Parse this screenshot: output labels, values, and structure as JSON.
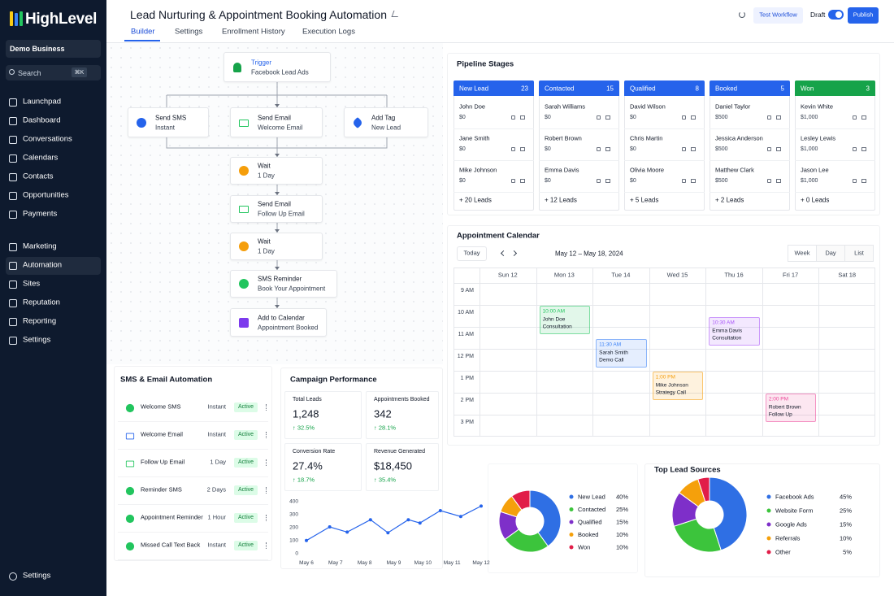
{
  "sidebar": {
    "logo": "HighLevel",
    "business": "Demo Business",
    "search": "Search",
    "shortcut": "⌘K",
    "groups": [
      [
        "Launchpad",
        "Dashboard",
        "Conversations",
        "Calendars",
        "Contacts",
        "Opportunities",
        "Payments"
      ],
      [
        "Marketing",
        "Automation",
        "Sites",
        "Reputation",
        "Reporting",
        "Settings"
      ]
    ],
    "active": {
      "group": 1,
      "index": 1
    },
    "footer": "Settings"
  },
  "header": {
    "title": "Lead Nurturing & Appointment Booking Automation",
    "tabs": [
      "Builder",
      "Settings",
      "Enrollment History",
      "Execution Logs"
    ],
    "active_tab": 0,
    "test_button": "Test Workflow",
    "toggle_label": "Draft",
    "toggle_on": true,
    "publish_button": "Publish"
  },
  "workflow": {
    "trigger": {
      "label": "Trigger",
      "detail": "Facebook Lead Ads"
    },
    "branches": [
      {
        "label": "Send SMS",
        "detail": "Instant"
      },
      {
        "label": "Send Email",
        "detail": "Welcome Email"
      },
      {
        "label": "Add Tag",
        "detail": "New Lead"
      }
    ],
    "steps": [
      {
        "label": "Wait",
        "detail": "1 Day"
      },
      {
        "label": "Send Email",
        "detail": "Follow Up Email"
      },
      {
        "label": "Wait",
        "detail": "1 Day"
      },
      {
        "label": "SMS Reminder",
        "detail": "Book Your Appointment"
      },
      {
        "label": "Add to Calendar",
        "detail": "Appointment Booked"
      }
    ]
  },
  "pipeline": {
    "title": "Pipeline Stages",
    "stages": [
      {
        "name": "New Lead",
        "count": 23,
        "color": "#2563eb",
        "leads": [
          {
            "name": "John Doe",
            "value": "$0"
          },
          {
            "name": "Jane Smith",
            "value": "$0"
          },
          {
            "name": "Mike Johnson",
            "value": "$0"
          }
        ],
        "more": "+ 20 Leads"
      },
      {
        "name": "Contacted",
        "count": 15,
        "color": "#2563eb",
        "leads": [
          {
            "name": "Sarah Williams",
            "value": "$0"
          },
          {
            "name": "Robert Brown",
            "value": "$0"
          },
          {
            "name": "Emma Davis",
            "value": "$0"
          }
        ],
        "more": "+ 12 Leads"
      },
      {
        "name": "Qualified",
        "count": 8,
        "color": "#2563eb",
        "leads": [
          {
            "name": "David Wilson",
            "value": "$0"
          },
          {
            "name": "Chris Martin",
            "value": "$0"
          },
          {
            "name": "Olivia Moore",
            "value": "$0"
          }
        ],
        "more": "+ 5 Leads"
      },
      {
        "name": "Booked",
        "count": 5,
        "color": "#2563eb",
        "leads": [
          {
            "name": "Daniel Taylor",
            "value": "$500"
          },
          {
            "name": "Jessica Anderson",
            "value": "$500"
          },
          {
            "name": "Matthew Clark",
            "value": "$500"
          }
        ],
        "more": "+ 2 Leads"
      },
      {
        "name": "Won",
        "count": 3,
        "color": "#16a34a",
        "leads": [
          {
            "name": "Kevin White",
            "value": "$1,000"
          },
          {
            "name": "Lesley Lewis",
            "value": "$1,000"
          },
          {
            "name": "Jason Lee",
            "value": "$1,000"
          }
        ],
        "more": "+ 0 Leads"
      }
    ]
  },
  "calendar": {
    "title": "Appointment Calendar",
    "today": "Today",
    "range": "May 12 – May 18, 2024",
    "views": [
      "Week",
      "Day",
      "List"
    ],
    "active_view": 0,
    "days": [
      "Sun 12",
      "Mon 13",
      "Tue 14",
      "Wed 15",
      "Thu 16",
      "Fri 17",
      "Sat 18"
    ],
    "times": [
      "9 AM",
      "10 AM",
      "11 AM",
      "12 PM",
      "1 PM",
      "2 PM",
      "3 PM"
    ],
    "events": [
      {
        "day": 1,
        "time": "10:00 AM",
        "title": "John Doe",
        "detail": "Consultation",
        "color": "#22c55e"
      },
      {
        "day": 2,
        "time": "11:30 AM",
        "title": "Sarah Smith",
        "detail": "Demo Call",
        "color": "#3b82f6"
      },
      {
        "day": 3,
        "time": "1:00 PM",
        "title": "Mike Johnson",
        "detail": "Strategy Call",
        "color": "#f59e0b"
      },
      {
        "day": 4,
        "time": "10:30 AM",
        "title": "Emma Davis",
        "detail": "Consultation",
        "color": "#a855f7"
      },
      {
        "day": 5,
        "time": "2:00 PM",
        "title": "Robert Brown",
        "detail": "Follow Up",
        "color": "#ec4899"
      }
    ]
  },
  "automations": {
    "title": "SMS & Email Automation",
    "items": [
      {
        "name": "Welcome SMS",
        "timing": "Instant",
        "status": "Active"
      },
      {
        "name": "Welcome Email",
        "timing": "Instant",
        "status": "Active"
      },
      {
        "name": "Follow Up Email",
        "timing": "1 Day",
        "status": "Active"
      },
      {
        "name": "Reminder SMS",
        "timing": "2 Days",
        "status": "Active"
      },
      {
        "name": "Appointment Reminder",
        "timing": "1 Hour",
        "status": "Active"
      },
      {
        "name": "Missed Call Text Back",
        "timing": "Instant",
        "status": "Active"
      }
    ]
  },
  "campaign": {
    "title": "Campaign Performance",
    "stats": [
      {
        "label": "Total Leads",
        "value": "1,248",
        "change": "↑ 32.5%"
      },
      {
        "label": "Appointments Booked",
        "value": "342",
        "change": "↑ 28.1%"
      },
      {
        "label": "Conversion Rate",
        "value": "27.4%",
        "change": "↑ 18.7%"
      },
      {
        "label": "Revenue Generated",
        "value": "$18,450",
        "change": "↑ 35.4%"
      }
    ]
  },
  "chart_data": [
    {
      "type": "line",
      "x": [
        0,
        0.8,
        1.4,
        2.2,
        2.8,
        3.5,
        3.9,
        4.6,
        5.3,
        6
      ],
      "values": [
        95,
        200,
        160,
        255,
        155,
        255,
        230,
        325,
        280,
        360
      ],
      "color": "#2563eb",
      "xlim": [
        0,
        6
      ],
      "xticks": [
        {
          "value": 0,
          "label": "May 6"
        },
        {
          "value": 1,
          "label": "May 7"
        },
        {
          "value": 2,
          "label": "May 8"
        },
        {
          "value": 3,
          "label": "May 9"
        },
        {
          "value": 4,
          "label": "May 10"
        },
        {
          "value": 5,
          "label": "May 11"
        },
        {
          "value": 6,
          "label": "May 12"
        }
      ],
      "ylim": [
        0,
        400
      ],
      "yticks": [
        0,
        100,
        200,
        300,
        400
      ],
      "grid": false
    },
    {
      "type": "pie",
      "categories": [
        "New Lead",
        "Contacted",
        "Qualified",
        "Booked",
        "Won"
      ],
      "values": [
        40,
        25,
        15,
        10,
        10
      ],
      "value_labels": [
        "40%",
        "25%",
        "15%",
        "10%",
        "10%"
      ],
      "colors": [
        "#2f6fe4",
        "#3cc43c",
        "#7e2fc9",
        "#f5a00b",
        "#e11d48"
      ]
    },
    {
      "type": "pie",
      "title": "Top Lead Sources",
      "categories": [
        "Facebook Ads",
        "Website Form",
        "Google Ads",
        "Referrals",
        "Other"
      ],
      "values": [
        45,
        25,
        15,
        10,
        5
      ],
      "value_labels": [
        "45%",
        "25%",
        "15%",
        "10%",
        "5%"
      ],
      "colors": [
        "#2f6fe4",
        "#3cc43c",
        "#7e2fc9",
        "#f5a00b",
        "#e11d48"
      ]
    }
  ]
}
